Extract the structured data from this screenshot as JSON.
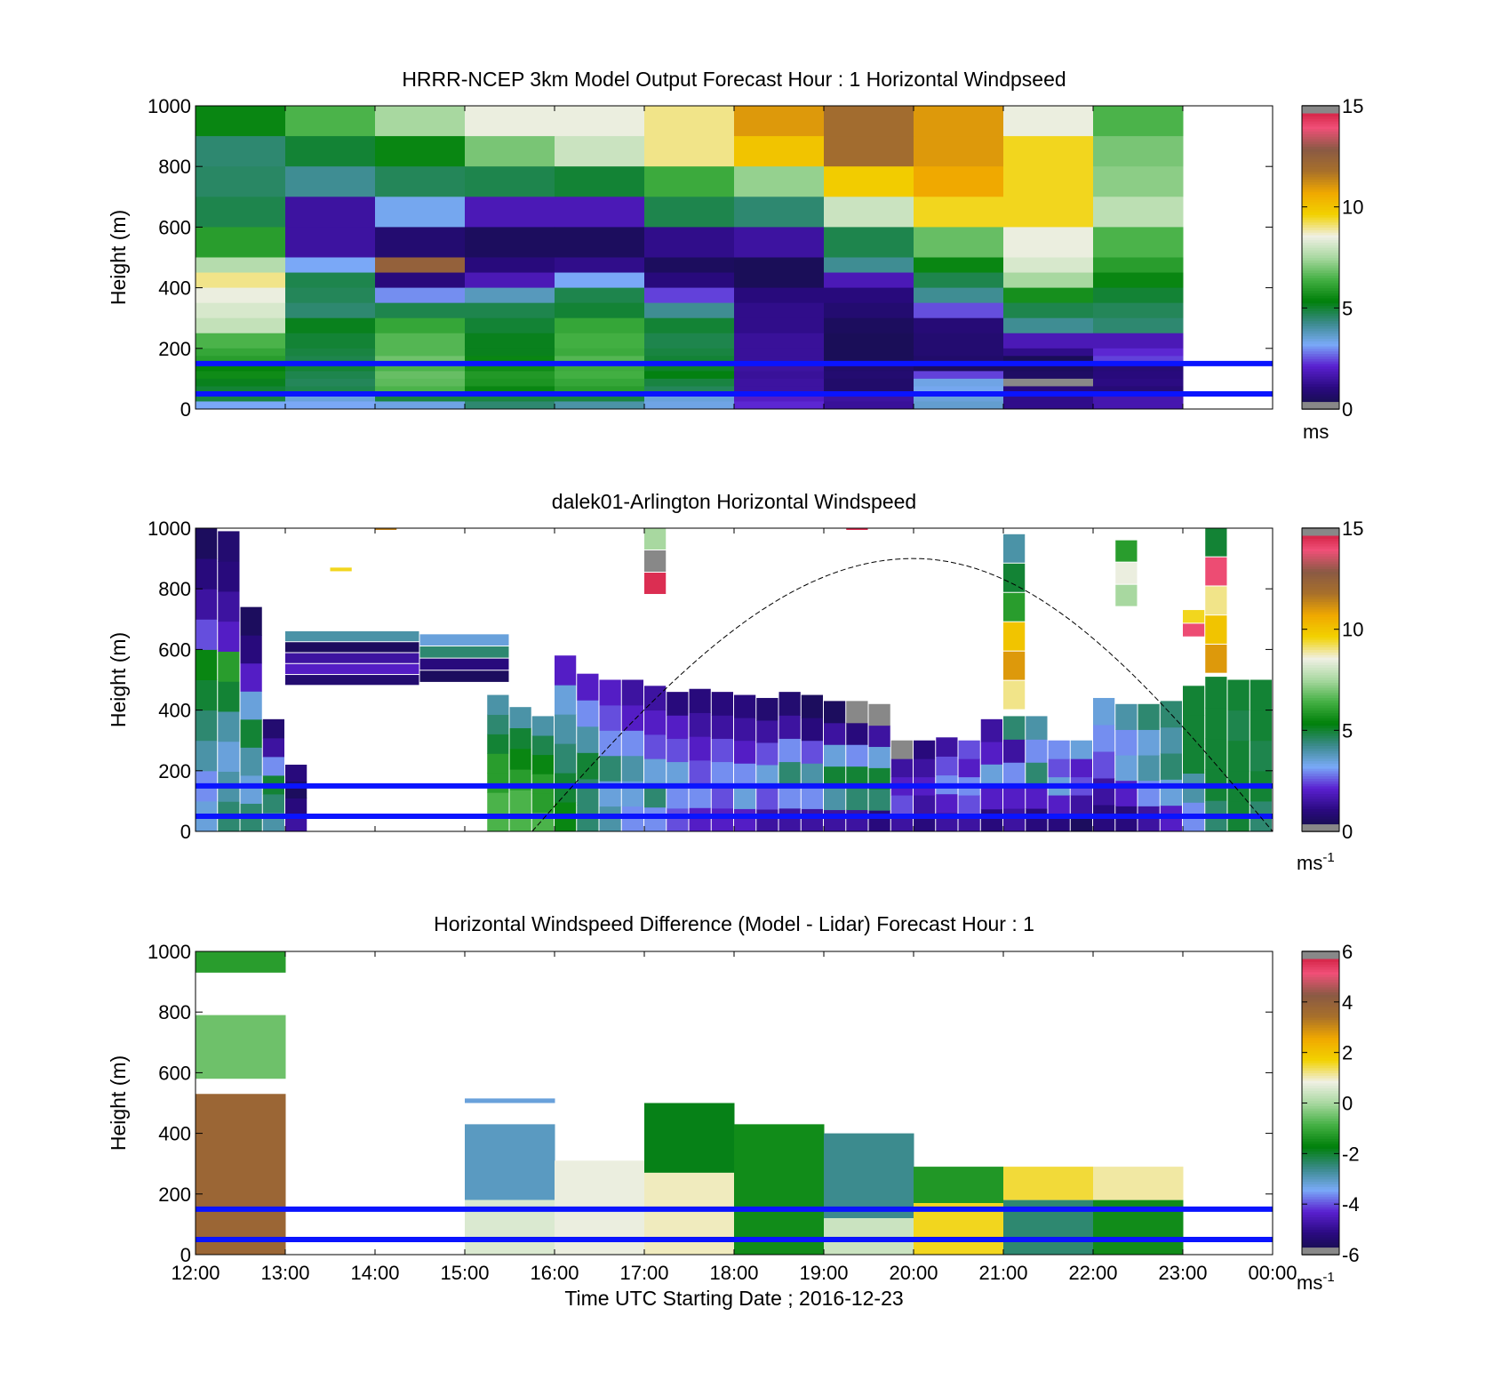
{
  "colors": {
    "colormap": [
      "#101040",
      "#2a0a80",
      "#5a20d0",
      "#7aaaf8",
      "#3a8a8a",
      "#00800a",
      "#44b044",
      "#a8d8a0",
      "#f0f0e4",
      "#f2d200",
      "#f0a800",
      "#a8702a",
      "#8a5a44",
      "#f05078",
      "#c81030"
    ],
    "overflow": "#888888",
    "overlay_line": "#0a14ff",
    "sun_curve": "#000000"
  },
  "figure": {
    "x_ticks": [
      "12:00",
      "13:00",
      "14:00",
      "15:00",
      "16:00",
      "17:00",
      "18:00",
      "19:00",
      "20:00",
      "21:00",
      "22:00",
      "23:00",
      "00:00"
    ],
    "y_ticks": [
      "0",
      "200",
      "400",
      "600",
      "800",
      "1000"
    ],
    "xlabel": "Time UTC  Starting Date ; 2016-12-23",
    "ylabel": "Height (m)"
  },
  "chart_data": [
    {
      "type": "heatmap",
      "title": "HRRR-NCEP 3km Model Output   Forecast Hour : 1 Horizontal Windpseed",
      "ylabel": "Height (m)",
      "x_range": [
        12,
        24
      ],
      "ylim": [
        0,
        1000
      ],
      "colorbar": {
        "range": [
          0,
          15
        ],
        "ticks": [
          "0",
          "5",
          "10",
          "15"
        ],
        "unit": "ms",
        "unit_sup": ""
      },
      "horizontal_lines_m": [
        150,
        50
      ],
      "row_bounds_m": [
        1000,
        900,
        800,
        700,
        600,
        500,
        450,
        400,
        350,
        300,
        250,
        200,
        175,
        150,
        125,
        100,
        75,
        50,
        25,
        0
      ],
      "hour_starts_utc": [
        12,
        13,
        14,
        15,
        16,
        17,
        18,
        19,
        20,
        21,
        22
      ],
      "windspeed_ms": [
        [
          5.5,
          6.5,
          7.5,
          8.5,
          8.5,
          9.0,
          11.0,
          12.0,
          11.0,
          8.5,
          6.5
        ],
        [
          4.5,
          5.0,
          5.5,
          7.0,
          8.0,
          9.0,
          10.0,
          12.0,
          11.0,
          9.5,
          7.0
        ],
        [
          4.6,
          4.2,
          4.7,
          4.8,
          5.0,
          6.3,
          7.3,
          9.8,
          10.7,
          9.5,
          7.2
        ],
        [
          4.8,
          1.5,
          3.3,
          1.8,
          1.8,
          4.8,
          4.5,
          8.0,
          9.5,
          9.5,
          7.8
        ],
        [
          6.0,
          1.5,
          0.8,
          0.5,
          0.5,
          1.2,
          1.5,
          4.8,
          6.8,
          8.5,
          6.5
        ],
        [
          7.7,
          3.2,
          12.5,
          1.0,
          1.2,
          0.5,
          0.4,
          4.2,
          5.5,
          8.2,
          6.0
        ],
        [
          9.0,
          4.8,
          1.0,
          1.8,
          3.2,
          1.0,
          0.4,
          1.8,
          4.8,
          7.5,
          5.5
        ],
        [
          8.5,
          4.7,
          3.0,
          3.8,
          4.8,
          2.4,
          1.0,
          1.0,
          4.2,
          5.7,
          5.0
        ],
        [
          8.2,
          4.5,
          4.8,
          4.8,
          5.0,
          4.2,
          1.2,
          0.8,
          2.5,
          4.8,
          4.7
        ],
        [
          7.9,
          5.2,
          6.2,
          5.0,
          6.2,
          5.0,
          1.2,
          0.5,
          0.9,
          4.2,
          4.5
        ],
        [
          6.5,
          5.0,
          6.6,
          5.2,
          6.4,
          4.8,
          1.4,
          0.4,
          0.8,
          1.8,
          1.8
        ],
        [
          6.2,
          4.9,
          6.6,
          5.2,
          6.3,
          4.9,
          1.4,
          0.4,
          0.8,
          1.2,
          2.2
        ],
        [
          6.0,
          4.8,
          6.9,
          5.5,
          6.6,
          5.0,
          1.4,
          0.4,
          0.7,
          0.4,
          2.4
        ],
        [
          5.4,
          5.0,
          6.5,
          5.6,
          6.3,
          5.1,
          1.5,
          0.7,
          0.5,
          0.5,
          0.9
        ],
        [
          5.6,
          4.8,
          6.8,
          5.9,
          6.4,
          5.3,
          1.4,
          0.8,
          2.4,
          0.6,
          1.0
        ],
        [
          5.2,
          4.7,
          6.7,
          5.8,
          6.2,
          4.9,
          1.5,
          0.7,
          3.4,
          16.0,
          1.1
        ],
        [
          5.0,
          4.8,
          6.5,
          5.5,
          6.0,
          4.7,
          1.5,
          0.7,
          3.3,
          1.0,
          0.9
        ],
        [
          4.9,
          3.5,
          4.9,
          4.9,
          4.9,
          3.5,
          2.0,
          1.5,
          3.5,
          1.2,
          1.7
        ],
        [
          3.2,
          3.2,
          3.4,
          4.5,
          4.0,
          3.4,
          2.2,
          1.4,
          3.6,
          1.2,
          1.7
        ]
      ]
    },
    {
      "type": "heatmap",
      "title": "dalek01-Arlington  Horizontal Windspeed",
      "ylabel": "Height (m)",
      "x_range": [
        12,
        24
      ],
      "ylim": [
        0,
        1000
      ],
      "colorbar": {
        "range": [
          0,
          15
        ],
        "ticks": [
          "0",
          "5",
          "10",
          "15"
        ],
        "unit": "ms",
        "unit_sup": "-1"
      },
      "horizontal_lines_m": [
        150,
        50
      ],
      "sun_elevation_curve": {
        "start_utc": 15.75,
        "peak_utc": 20.0,
        "end_utc": 24.0,
        "peak_m": 900
      },
      "profile_spacing_min": 15,
      "approximate_profiles": [
        {
          "start_utc": 12.0,
          "top_m": 1000,
          "ms": [
            3.5,
            3.0,
            4.0,
            4.5,
            5.0,
            5.5,
            2.5,
            1.5,
            1.0,
            0.5
          ]
        },
        {
          "start_utc": 12.25,
          "top_m": 990,
          "ms": [
            4.5,
            4.0,
            3.5,
            4.0,
            5.0,
            6.0,
            2.0,
            1.5,
            1.0,
            0.8
          ]
        },
        {
          "start_utc": 12.5,
          "top_m": 740,
          "ms": [
            4.5,
            3.5,
            4.0,
            5.0,
            3.5,
            2.0,
            1.0,
            0.5
          ]
        },
        {
          "start_utc": 12.75,
          "top_m": 370,
          "ms": [
            4.0,
            4.5,
            5.0,
            3.0,
            1.5,
            0.8
          ]
        },
        {
          "start_utc": 13.0,
          "top_m": 220,
          "ms": [
            1.5,
            1.0,
            0.5,
            1.0
          ]
        },
        {
          "start_utc": 15.25,
          "top_m": 450,
          "ms": [
            6.5,
            6.5,
            6.0,
            6.0,
            5.0,
            4.5,
            4.0
          ]
        },
        {
          "start_utc": 15.5,
          "top_m": 410,
          "ms": [
            6.5,
            6.5,
            6.0,
            5.5,
            5.0,
            4.0
          ]
        },
        {
          "start_utc": 15.75,
          "top_m": 380,
          "ms": [
            6.5,
            6.0,
            6.0,
            5.5,
            4.8,
            4.0
          ]
        },
        {
          "start_utc": 16.0,
          "top_m": 580,
          "ms": [
            5.5,
            5.0,
            4.5,
            4.0,
            3.5,
            2.0
          ]
        },
        {
          "start_utc": 16.25,
          "top_m": 520,
          "ms": [
            4.5,
            4.5,
            5.0,
            4.0,
            3.0,
            2.0
          ]
        },
        {
          "start_utc": 16.5,
          "top_m": 500,
          "ms": [
            4.0,
            3.5,
            4.5,
            3.0,
            2.5,
            2.0
          ]
        },
        {
          "start_utc": 16.75,
          "top_m": 500,
          "ms": [
            3.0,
            3.5,
            4.0,
            3.0,
            2.0,
            1.5
          ]
        },
        {
          "start_utc": 17.0,
          "top_m": 480,
          "ms": [
            3.0,
            4.5,
            3.5,
            2.5,
            2.0,
            1.5
          ]
        },
        {
          "start_utc": 17.25,
          "top_m": 460,
          "ms": [
            2.5,
            3.0,
            3.5,
            2.5,
            2.0,
            1.0
          ]
        },
        {
          "start_utc": 17.5,
          "top_m": 470,
          "ms": [
            2.0,
            3.0,
            2.5,
            2.0,
            1.5,
            1.0
          ]
        },
        {
          "start_utc": 17.75,
          "top_m": 460,
          "ms": [
            2.0,
            2.5,
            3.0,
            2.5,
            1.5,
            1.0
          ]
        },
        {
          "start_utc": 18.0,
          "top_m": 450,
          "ms": [
            2.0,
            3.5,
            3.0,
            2.0,
            1.5,
            1.0
          ]
        },
        {
          "start_utc": 18.25,
          "top_m": 440,
          "ms": [
            1.5,
            2.5,
            3.5,
            2.5,
            1.5,
            0.8
          ]
        },
        {
          "start_utc": 18.5,
          "top_m": 460,
          "ms": [
            1.5,
            3.0,
            4.5,
            3.0,
            1.5,
            0.8
          ]
        },
        {
          "start_utc": 18.75,
          "top_m": 450,
          "ms": [
            1.5,
            3.0,
            4.0,
            2.5,
            1.0,
            0.5
          ]
        },
        {
          "start_utc": 19.0,
          "top_m": 430,
          "ms": [
            1.5,
            4.0,
            5.0,
            3.5,
            1.5,
            0.5
          ]
        },
        {
          "start_utc": 19.25,
          "top_m": 430,
          "ms": [
            1.5,
            4.5,
            5.0,
            3.0,
            1.0,
            15.5
          ]
        },
        {
          "start_utc": 19.5,
          "top_m": 420,
          "ms": [
            1.0,
            4.5,
            5.0,
            3.5,
            1.5,
            15.5
          ]
        },
        {
          "start_utc": 19.75,
          "top_m": 300,
          "ms": [
            1.5,
            2.5,
            2.0,
            1.5,
            15.5
          ]
        },
        {
          "start_utc": 20.0,
          "top_m": 300,
          "ms": [
            1.0,
            1.5,
            2.0,
            1.5,
            1.0
          ]
        },
        {
          "start_utc": 20.25,
          "top_m": 310,
          "ms": [
            1.5,
            2.0,
            3.0,
            2.5,
            1.5
          ]
        },
        {
          "start_utc": 20.5,
          "top_m": 300,
          "ms": [
            1.5,
            2.5,
            3.0,
            2.0,
            2.5
          ]
        },
        {
          "start_utc": 20.75,
          "top_m": 370,
          "ms": [
            1.0,
            2.0,
            3.5,
            2.0,
            1.5
          ]
        },
        {
          "start_utc": 21.0,
          "top_m": 380,
          "ms": [
            1.5,
            2.0,
            3.0,
            1.5,
            4.5
          ]
        },
        {
          "start_utc": 21.25,
          "top_m": 380,
          "ms": [
            1.0,
            2.0,
            4.5,
            3.0,
            4.0
          ]
        },
        {
          "start_utc": 21.5,
          "top_m": 300,
          "ms": [
            1.0,
            2.0,
            3.5,
            2.5,
            3.0
          ]
        },
        {
          "start_utc": 21.75,
          "top_m": 300,
          "ms": [
            0.5,
            1.5,
            2.5,
            2.0,
            3.5
          ]
        },
        {
          "start_utc": 22.0,
          "top_m": 440,
          "ms": [
            1.0,
            1.5,
            2.5,
            3.0,
            3.5
          ]
        },
        {
          "start_utc": 22.25,
          "top_m": 420,
          "ms": [
            1.0,
            2.0,
            3.5,
            3.0,
            4.0
          ]
        },
        {
          "start_utc": 22.5,
          "top_m": 420,
          "ms": [
            1.5,
            3.0,
            4.0,
            3.5,
            4.5
          ]
        },
        {
          "start_utc": 22.75,
          "top_m": 430,
          "ms": [
            2.0,
            3.5,
            4.5,
            4.0,
            4.5
          ]
        },
        {
          "start_utc": 23.0,
          "top_m": 480,
          "ms": [
            3.0,
            4.0,
            5.0,
            5.0,
            5.0
          ]
        },
        {
          "start_utc": 23.25,
          "top_m": 510,
          "ms": [
            4.5,
            5.0,
            5.0,
            5.0,
            5.0
          ]
        },
        {
          "start_utc": 23.5,
          "top_m": 500,
          "ms": [
            5.0,
            5.0,
            5.0,
            4.8,
            5.0
          ]
        },
        {
          "start_utc": 23.75,
          "top_m": 500,
          "ms": [
            4.5,
            5.0,
            4.8,
            5.0,
            5.0
          ]
        }
      ],
      "approximate_isolated_segments": [
        {
          "start_utc": 13.0,
          "end_utc": 14.5,
          "bottom_m": 480,
          "top_m": 660,
          "ms": [
            0.8,
            2.0,
            1.5,
            0.5,
            4.0
          ]
        },
        {
          "start_utc": 14.5,
          "end_utc": 15.5,
          "bottom_m": 490,
          "top_m": 650,
          "ms": [
            0.5,
            1.0,
            4.5,
            3.5
          ]
        },
        {
          "start_utc": 13.5,
          "end_utc": 13.75,
          "bottom_m": 855,
          "top_m": 870,
          "ms": [
            9.5
          ]
        },
        {
          "start_utc": 14.0,
          "end_utc": 14.25,
          "bottom_m": 995,
          "top_m": 1000,
          "ms": [
            11.5
          ]
        },
        {
          "start_utc": 17.0,
          "end_utc": 17.25,
          "bottom_m": 780,
          "top_m": 1000,
          "ms": [
            14.5,
            15.5,
            7.5
          ]
        },
        {
          "start_utc": 19.25,
          "end_utc": 19.5,
          "bottom_m": 995,
          "top_m": 1000,
          "ms": [
            14.5
          ]
        },
        {
          "start_utc": 21.0,
          "end_utc": 21.25,
          "bottom_m": 400,
          "top_m": 980,
          "ms": [
            9.0,
            11.0,
            10.0,
            6.0,
            5.0,
            4.0
          ]
        },
        {
          "start_utc": 22.25,
          "end_utc": 22.5,
          "bottom_m": 740,
          "top_m": 960,
          "ms": [
            7.5,
            8.5,
            6.0
          ]
        },
        {
          "start_utc": 23.0,
          "end_utc": 23.25,
          "bottom_m": 640,
          "top_m": 730,
          "ms": [
            14.0,
            9.5
          ]
        },
        {
          "start_utc": 23.25,
          "end_utc": 23.5,
          "bottom_m": 520,
          "top_m": 1000,
          "ms": [
            11.0,
            10.0,
            9.0,
            14.0,
            5.0
          ]
        }
      ]
    },
    {
      "type": "heatmap",
      "title": "Horizontal Windspeed Difference (Model - Lidar) Forecast Hour : 1",
      "ylabel": "Height (m)",
      "xlabel": "Time UTC  Starting Date ; 2016-12-23",
      "x_range": [
        12,
        24
      ],
      "ylim": [
        0,
        1000
      ],
      "colorbar": {
        "range": [
          -6,
          6
        ],
        "ticks": [
          "-6",
          "-4",
          "-2",
          "0",
          "2",
          "4",
          "6"
        ],
        "unit": "ms",
        "unit_sup": "-1"
      },
      "horizontal_lines_m": [
        150,
        50
      ],
      "approximate_hour_columns": [
        {
          "start_utc": 12,
          "segments": [
            {
              "bottom_m": 930,
              "top_m": 1000,
              "diff": -1.2
            },
            {
              "bottom_m": 580,
              "top_m": 790,
              "diff": -0.5
            },
            {
              "bottom_m": 0,
              "top_m": 530,
              "diff": 3.8
            }
          ]
        },
        {
          "start_utc": 15,
          "segments": [
            {
              "bottom_m": 500,
              "top_m": 515,
              "diff": -3.2
            },
            {
              "bottom_m": 180,
              "top_m": 430,
              "diff": -3.0
            },
            {
              "bottom_m": 0,
              "top_m": 180,
              "diff": 0.6
            }
          ]
        },
        {
          "start_utc": 16,
          "segments": [
            {
              "bottom_m": 0,
              "top_m": 310,
              "diff": 0.8
            }
          ]
        },
        {
          "start_utc": 17,
          "segments": [
            {
              "bottom_m": 270,
              "top_m": 500,
              "diff": -1.8
            },
            {
              "bottom_m": 0,
              "top_m": 270,
              "diff": 1.0
            }
          ]
        },
        {
          "start_utc": 18,
          "segments": [
            {
              "bottom_m": 0,
              "top_m": 430,
              "diff": -1.5
            }
          ]
        },
        {
          "start_utc": 19,
          "segments": [
            {
              "bottom_m": 120,
              "top_m": 400,
              "diff": -2.6
            },
            {
              "bottom_m": 0,
              "top_m": 120,
              "diff": 0.4
            }
          ]
        },
        {
          "start_utc": 20,
          "segments": [
            {
              "bottom_m": 170,
              "top_m": 290,
              "diff": -1.3
            },
            {
              "bottom_m": 0,
              "top_m": 170,
              "diff": 1.6
            }
          ]
        },
        {
          "start_utc": 21,
          "segments": [
            {
              "bottom_m": 180,
              "top_m": 290,
              "diff": 1.5
            },
            {
              "bottom_m": 0,
              "top_m": 180,
              "diff": -2.4
            }
          ]
        },
        {
          "start_utc": 22,
          "segments": [
            {
              "bottom_m": 180,
              "top_m": 290,
              "diff": 1.1
            },
            {
              "bottom_m": 0,
              "top_m": 180,
              "diff": -1.5
            }
          ]
        }
      ]
    }
  ]
}
